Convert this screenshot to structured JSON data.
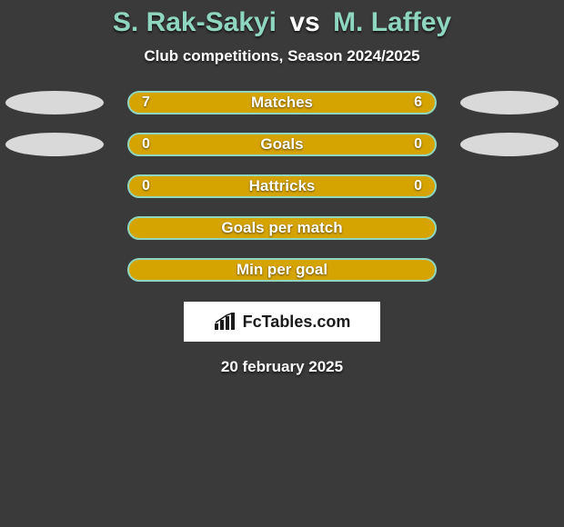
{
  "title": {
    "player1": "S. Rak-Sakyi",
    "vs": "vs",
    "player2": "M. Laffey",
    "fontsize": 30,
    "player_color": "#8fd6c0",
    "vs_color": "#ffffff"
  },
  "subtitle": "Club competitions, Season 2024/2025",
  "background_color": "#3a3a3a",
  "ellipse_color": "#d9d9d9",
  "stats": [
    {
      "label": "Matches",
      "left_value": "7",
      "right_value": "6",
      "bar_color": "#d6a400",
      "border_color": "#8fd6c0",
      "show_left_ellipse": true,
      "show_right_ellipse": true
    },
    {
      "label": "Goals",
      "left_value": "0",
      "right_value": "0",
      "bar_color": "#d6a400",
      "border_color": "#8fd6c0",
      "show_left_ellipse": true,
      "show_right_ellipse": true
    },
    {
      "label": "Hattricks",
      "left_value": "0",
      "right_value": "0",
      "bar_color": "#d6a400",
      "border_color": "#8fd6c0",
      "show_left_ellipse": false,
      "show_right_ellipse": false
    },
    {
      "label": "Goals per match",
      "left_value": "",
      "right_value": "",
      "bar_color": "#d6a400",
      "border_color": "#8fd6c0",
      "show_left_ellipse": false,
      "show_right_ellipse": false
    },
    {
      "label": "Min per goal",
      "left_value": "",
      "right_value": "",
      "bar_color": "#d6a400",
      "border_color": "#8fd6c0",
      "show_left_ellipse": false,
      "show_right_ellipse": false
    }
  ],
  "brand": "FcTables.com",
  "date": "20 february 2025"
}
